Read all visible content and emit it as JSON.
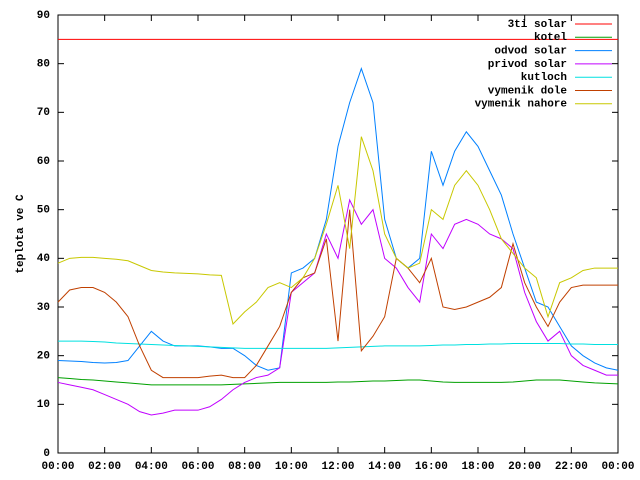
{
  "chart_data": {
    "type": "line",
    "y_label": "teplota ve C",
    "x": [
      0,
      0.5,
      1,
      1.5,
      2,
      2.5,
      3,
      3.5,
      4,
      4.5,
      5,
      5.5,
      6,
      6.5,
      7,
      7.5,
      8,
      8.5,
      9,
      9.5,
      10,
      10.5,
      11,
      11.5,
      12,
      12.5,
      13,
      13.5,
      14,
      14.5,
      15,
      15.5,
      16,
      16.5,
      17,
      17.5,
      18,
      18.5,
      19,
      19.5,
      20,
      20.5,
      21,
      21.5,
      22,
      22.5,
      23,
      23.5,
      24
    ],
    "xlim": [
      0,
      24
    ],
    "xticks": [
      {
        "value": 0,
        "label": "00:00"
      },
      {
        "value": 2,
        "label": "02:00"
      },
      {
        "value": 4,
        "label": "04:00"
      },
      {
        "value": 6,
        "label": "06:00"
      },
      {
        "value": 8,
        "label": "08:00"
      },
      {
        "value": 10,
        "label": "10:00"
      },
      {
        "value": 12,
        "label": "12:00"
      },
      {
        "value": 14,
        "label": "14:00"
      },
      {
        "value": 16,
        "label": "16:00"
      },
      {
        "value": 18,
        "label": "18:00"
      },
      {
        "value": 20,
        "label": "20:00"
      },
      {
        "value": 22,
        "label": "22:00"
      },
      {
        "value": 24,
        "label": "00:00"
      }
    ],
    "ylim": [
      0,
      90
    ],
    "yticks": [
      0,
      10,
      20,
      30,
      40,
      50,
      60,
      70,
      80,
      90
    ],
    "legend": "top-right",
    "series": [
      {
        "name": "3ti solar",
        "color": "#ff0000",
        "values": [
          85,
          85,
          85,
          85,
          85,
          85,
          85,
          85,
          85,
          85,
          85,
          85,
          85,
          85,
          85,
          85,
          85,
          85,
          85,
          85,
          85,
          85,
          85,
          85,
          85,
          85,
          85,
          85,
          85,
          85,
          85,
          85,
          85,
          85,
          85,
          85,
          85,
          85,
          85,
          85,
          85,
          85,
          85,
          85,
          85,
          85,
          85,
          85,
          85
        ]
      },
      {
        "name": "kotel",
        "color": "#00a000",
        "values": [
          15.5,
          15.3,
          15.1,
          15,
          14.8,
          14.6,
          14.4,
          14.2,
          14,
          14,
          14,
          14,
          14,
          14,
          14,
          14.1,
          14.2,
          14.3,
          14.4,
          14.5,
          14.5,
          14.5,
          14.5,
          14.5,
          14.6,
          14.6,
          14.7,
          14.8,
          14.8,
          14.9,
          15,
          15,
          14.8,
          14.6,
          14.5,
          14.5,
          14.5,
          14.5,
          14.5,
          14.6,
          14.8,
          15,
          15,
          15,
          14.8,
          14.6,
          14.4,
          14.3,
          14.2
        ]
      },
      {
        "name": "odvod solar",
        "color": "#0080ff",
        "values": [
          19,
          18.9,
          18.8,
          18.6,
          18.5,
          18.6,
          19,
          22,
          25,
          23,
          22,
          22,
          22,
          21.8,
          21.5,
          21.5,
          20,
          18,
          17,
          17.5,
          37,
          38,
          40,
          48,
          63,
          72,
          79,
          72,
          48,
          40,
          38,
          40,
          62,
          55,
          62,
          66,
          63,
          58,
          53,
          45,
          38,
          31,
          30,
          26,
          22,
          20,
          18.5,
          17.5,
          17
        ]
      },
      {
        "name": "privod solar",
        "color": "#c000ff",
        "values": [
          14.5,
          14,
          13.5,
          13,
          12,
          11,
          10,
          8.5,
          7.8,
          8.2,
          8.8,
          8.8,
          8.8,
          9.5,
          11,
          13,
          14.5,
          15.5,
          16,
          17.5,
          33,
          35,
          37,
          45,
          40,
          52,
          47,
          50,
          40,
          38,
          34,
          31,
          45,
          42,
          47,
          48,
          47,
          45,
          44,
          42,
          33,
          27,
          23,
          25,
          20,
          18,
          17,
          16,
          16
        ]
      },
      {
        "name": "kutloch",
        "color": "#00e0e0",
        "values": [
          23,
          23,
          23,
          22.9,
          22.8,
          22.6,
          22.5,
          22.4,
          22.3,
          22.2,
          22.1,
          22,
          21.9,
          21.8,
          21.7,
          21.6,
          21.5,
          21.5,
          21.5,
          21.5,
          21.5,
          21.5,
          21.5,
          21.5,
          21.6,
          21.7,
          21.8,
          21.9,
          22,
          22,
          22,
          22,
          22.1,
          22.2,
          22.2,
          22.3,
          22.3,
          22.4,
          22.4,
          22.5,
          22.5,
          22.5,
          22.5,
          22.5,
          22.4,
          22.4,
          22.3,
          22.3,
          22.3
        ]
      },
      {
        "name": "vymenik dole",
        "color": "#c04000",
        "values": [
          31,
          33.5,
          34,
          34,
          33,
          31,
          28,
          22,
          17,
          15.5,
          15.5,
          15.5,
          15.5,
          15.8,
          16,
          15.5,
          15.5,
          18,
          22,
          26,
          33,
          36,
          37,
          44,
          23,
          50,
          21,
          24,
          28,
          40,
          38,
          35,
          40,
          30,
          29.5,
          30,
          31,
          32,
          34,
          43,
          35,
          30,
          26,
          31,
          34,
          34.5,
          34.5,
          34.5,
          34.5
        ]
      },
      {
        "name": "vymenik nahore",
        "color": "#c8c800",
        "values": [
          39,
          40,
          40.2,
          40.2,
          40,
          39.8,
          39.5,
          38.5,
          37.5,
          37.2,
          37,
          36.9,
          36.8,
          36.6,
          36.5,
          26.5,
          29,
          31,
          34,
          35,
          34,
          36,
          40,
          47,
          55,
          42,
          65,
          58,
          45,
          40,
          38,
          39,
          50,
          48,
          55,
          58,
          55,
          50,
          44,
          41,
          38,
          36,
          28,
          35,
          36,
          37.5,
          38,
          38,
          38
        ]
      }
    ]
  }
}
